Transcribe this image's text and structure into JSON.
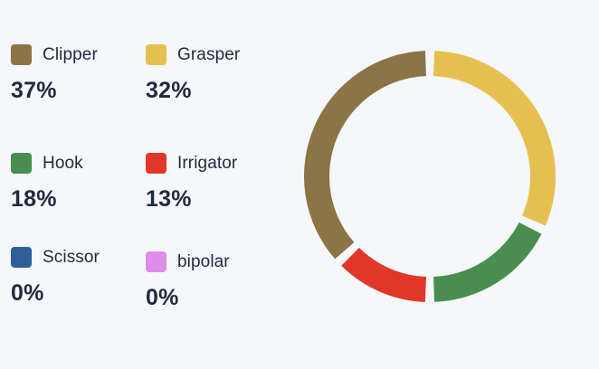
{
  "chart_data": {
    "type": "pie",
    "variant": "donut",
    "categories": [
      "Clipper",
      "Grasper",
      "Hook",
      "Irrigator",
      "Scissor",
      "bipolar"
    ],
    "values": [
      37,
      32,
      18,
      13,
      0,
      0
    ],
    "value_labels": [
      "37%",
      "32%",
      "18%",
      "13%",
      "0%",
      "0%"
    ],
    "colors": [
      "#8b7446",
      "#e5c050",
      "#4a8d50",
      "#e2362a",
      "#2f5f98",
      "#de8ee8"
    ],
    "legend_position": "left",
    "segment_order_clockwise_from_top": [
      "Grasper",
      "Hook",
      "Irrigator",
      "Clipper"
    ]
  }
}
